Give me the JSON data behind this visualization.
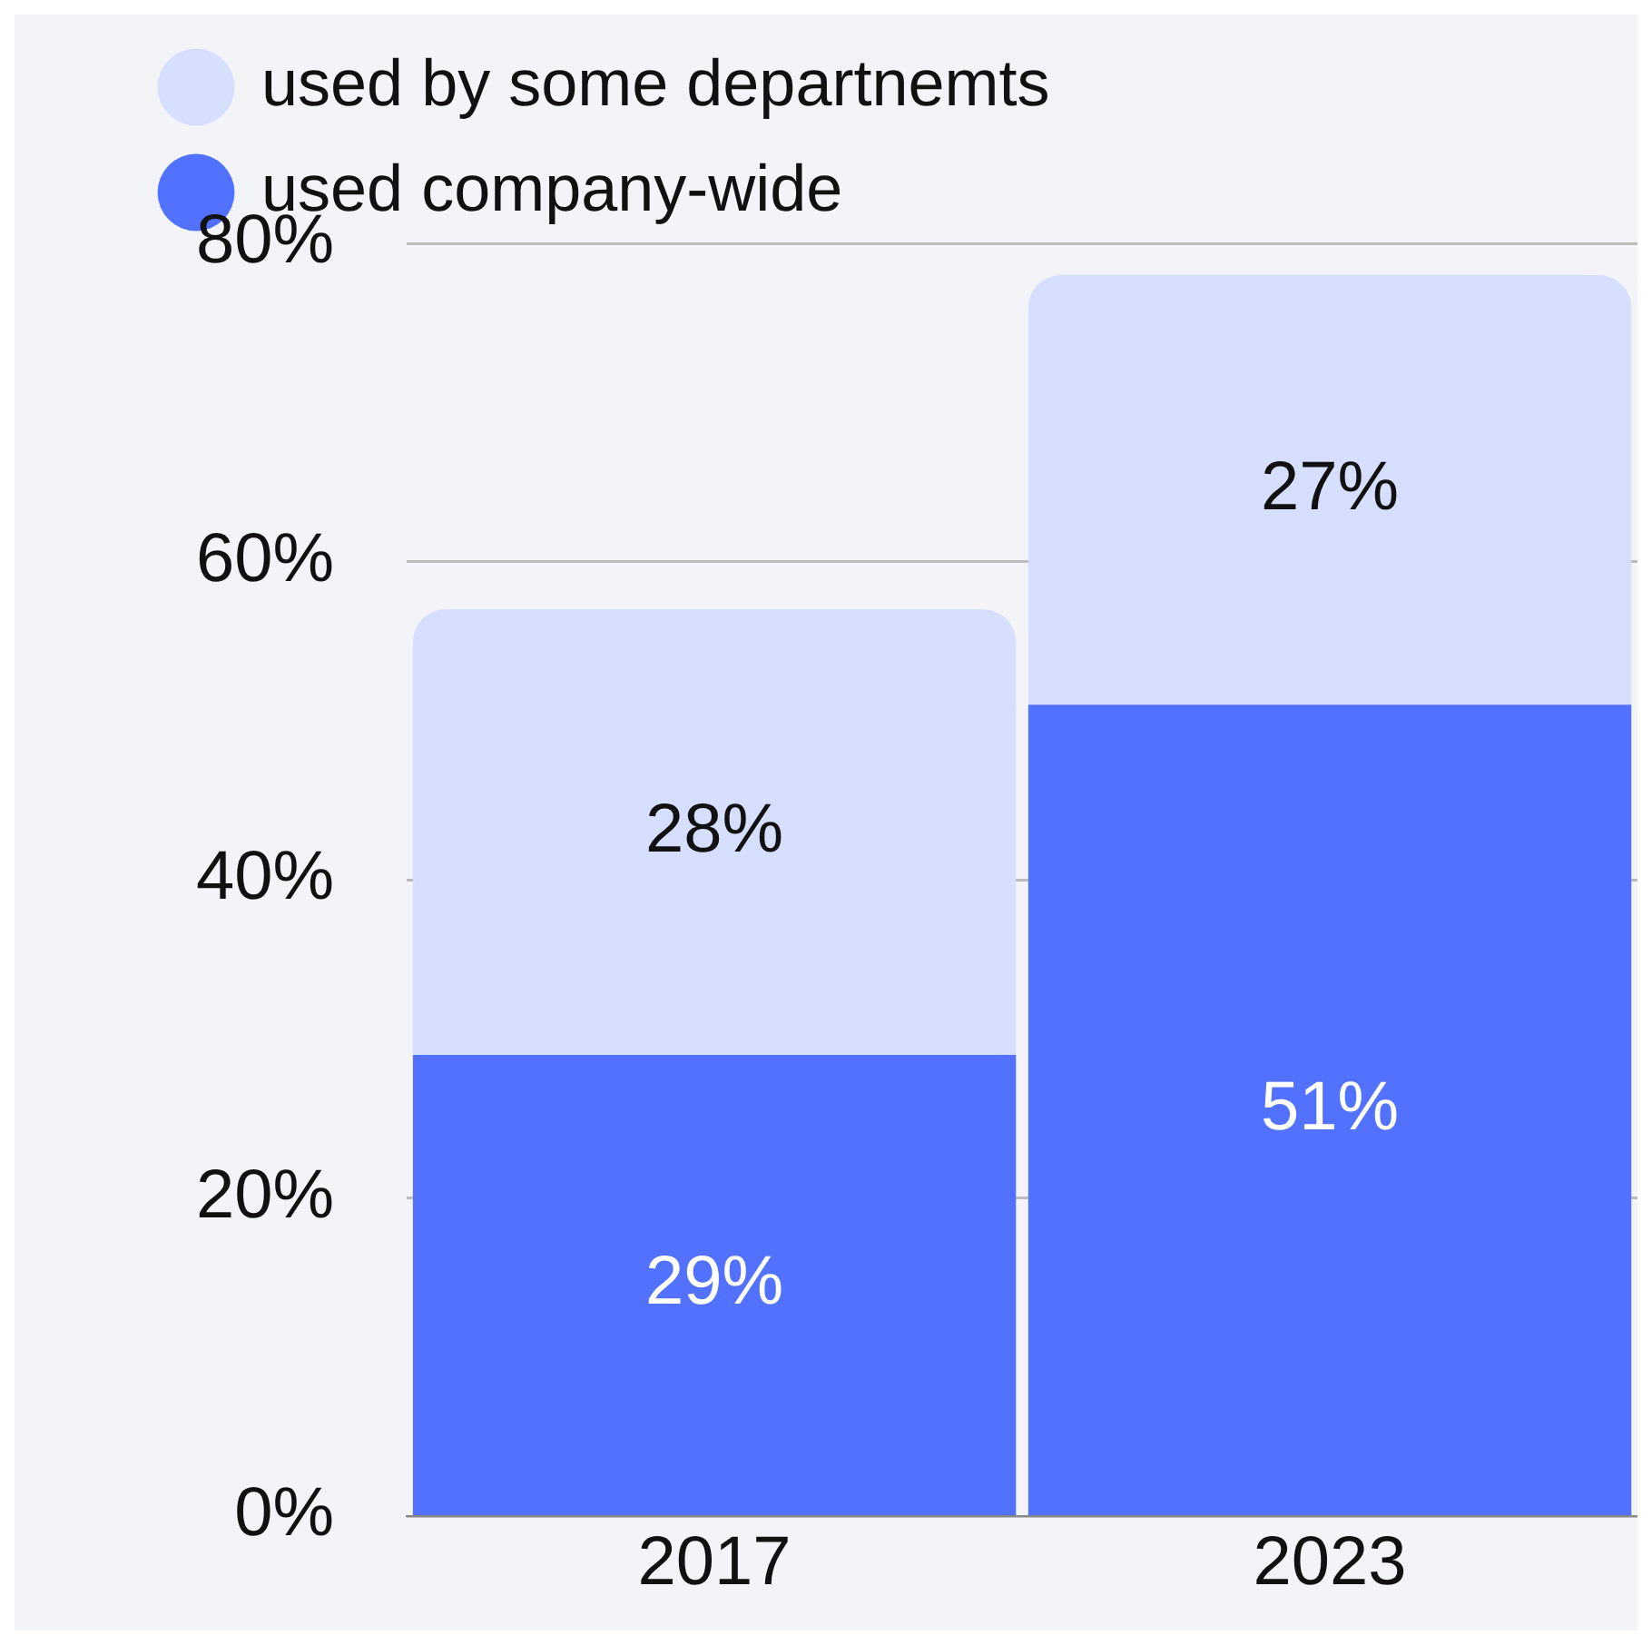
{
  "chart_data": {
    "type": "bar",
    "stacked": true,
    "categories": [
      "2017",
      "2023"
    ],
    "series": [
      {
        "name": "used company-wide",
        "color": "#5271ff",
        "values": [
          29,
          51
        ],
        "value_labels": [
          "29%",
          "51%"
        ]
      },
      {
        "name": "used by some departnemts",
        "color": "#d6dffe",
        "values": [
          28,
          27
        ],
        "value_labels": [
          "28%",
          "27%"
        ]
      }
    ],
    "ylim": [
      0,
      80
    ],
    "yticks": [
      {
        "value": 0,
        "label": "0%"
      },
      {
        "value": 20,
        "label": "20%"
      },
      {
        "value": 40,
        "label": "40%"
      },
      {
        "value": 60,
        "label": "60%"
      },
      {
        "value": 80,
        "label": "80%"
      }
    ],
    "grid": "y",
    "legend": "top left"
  }
}
